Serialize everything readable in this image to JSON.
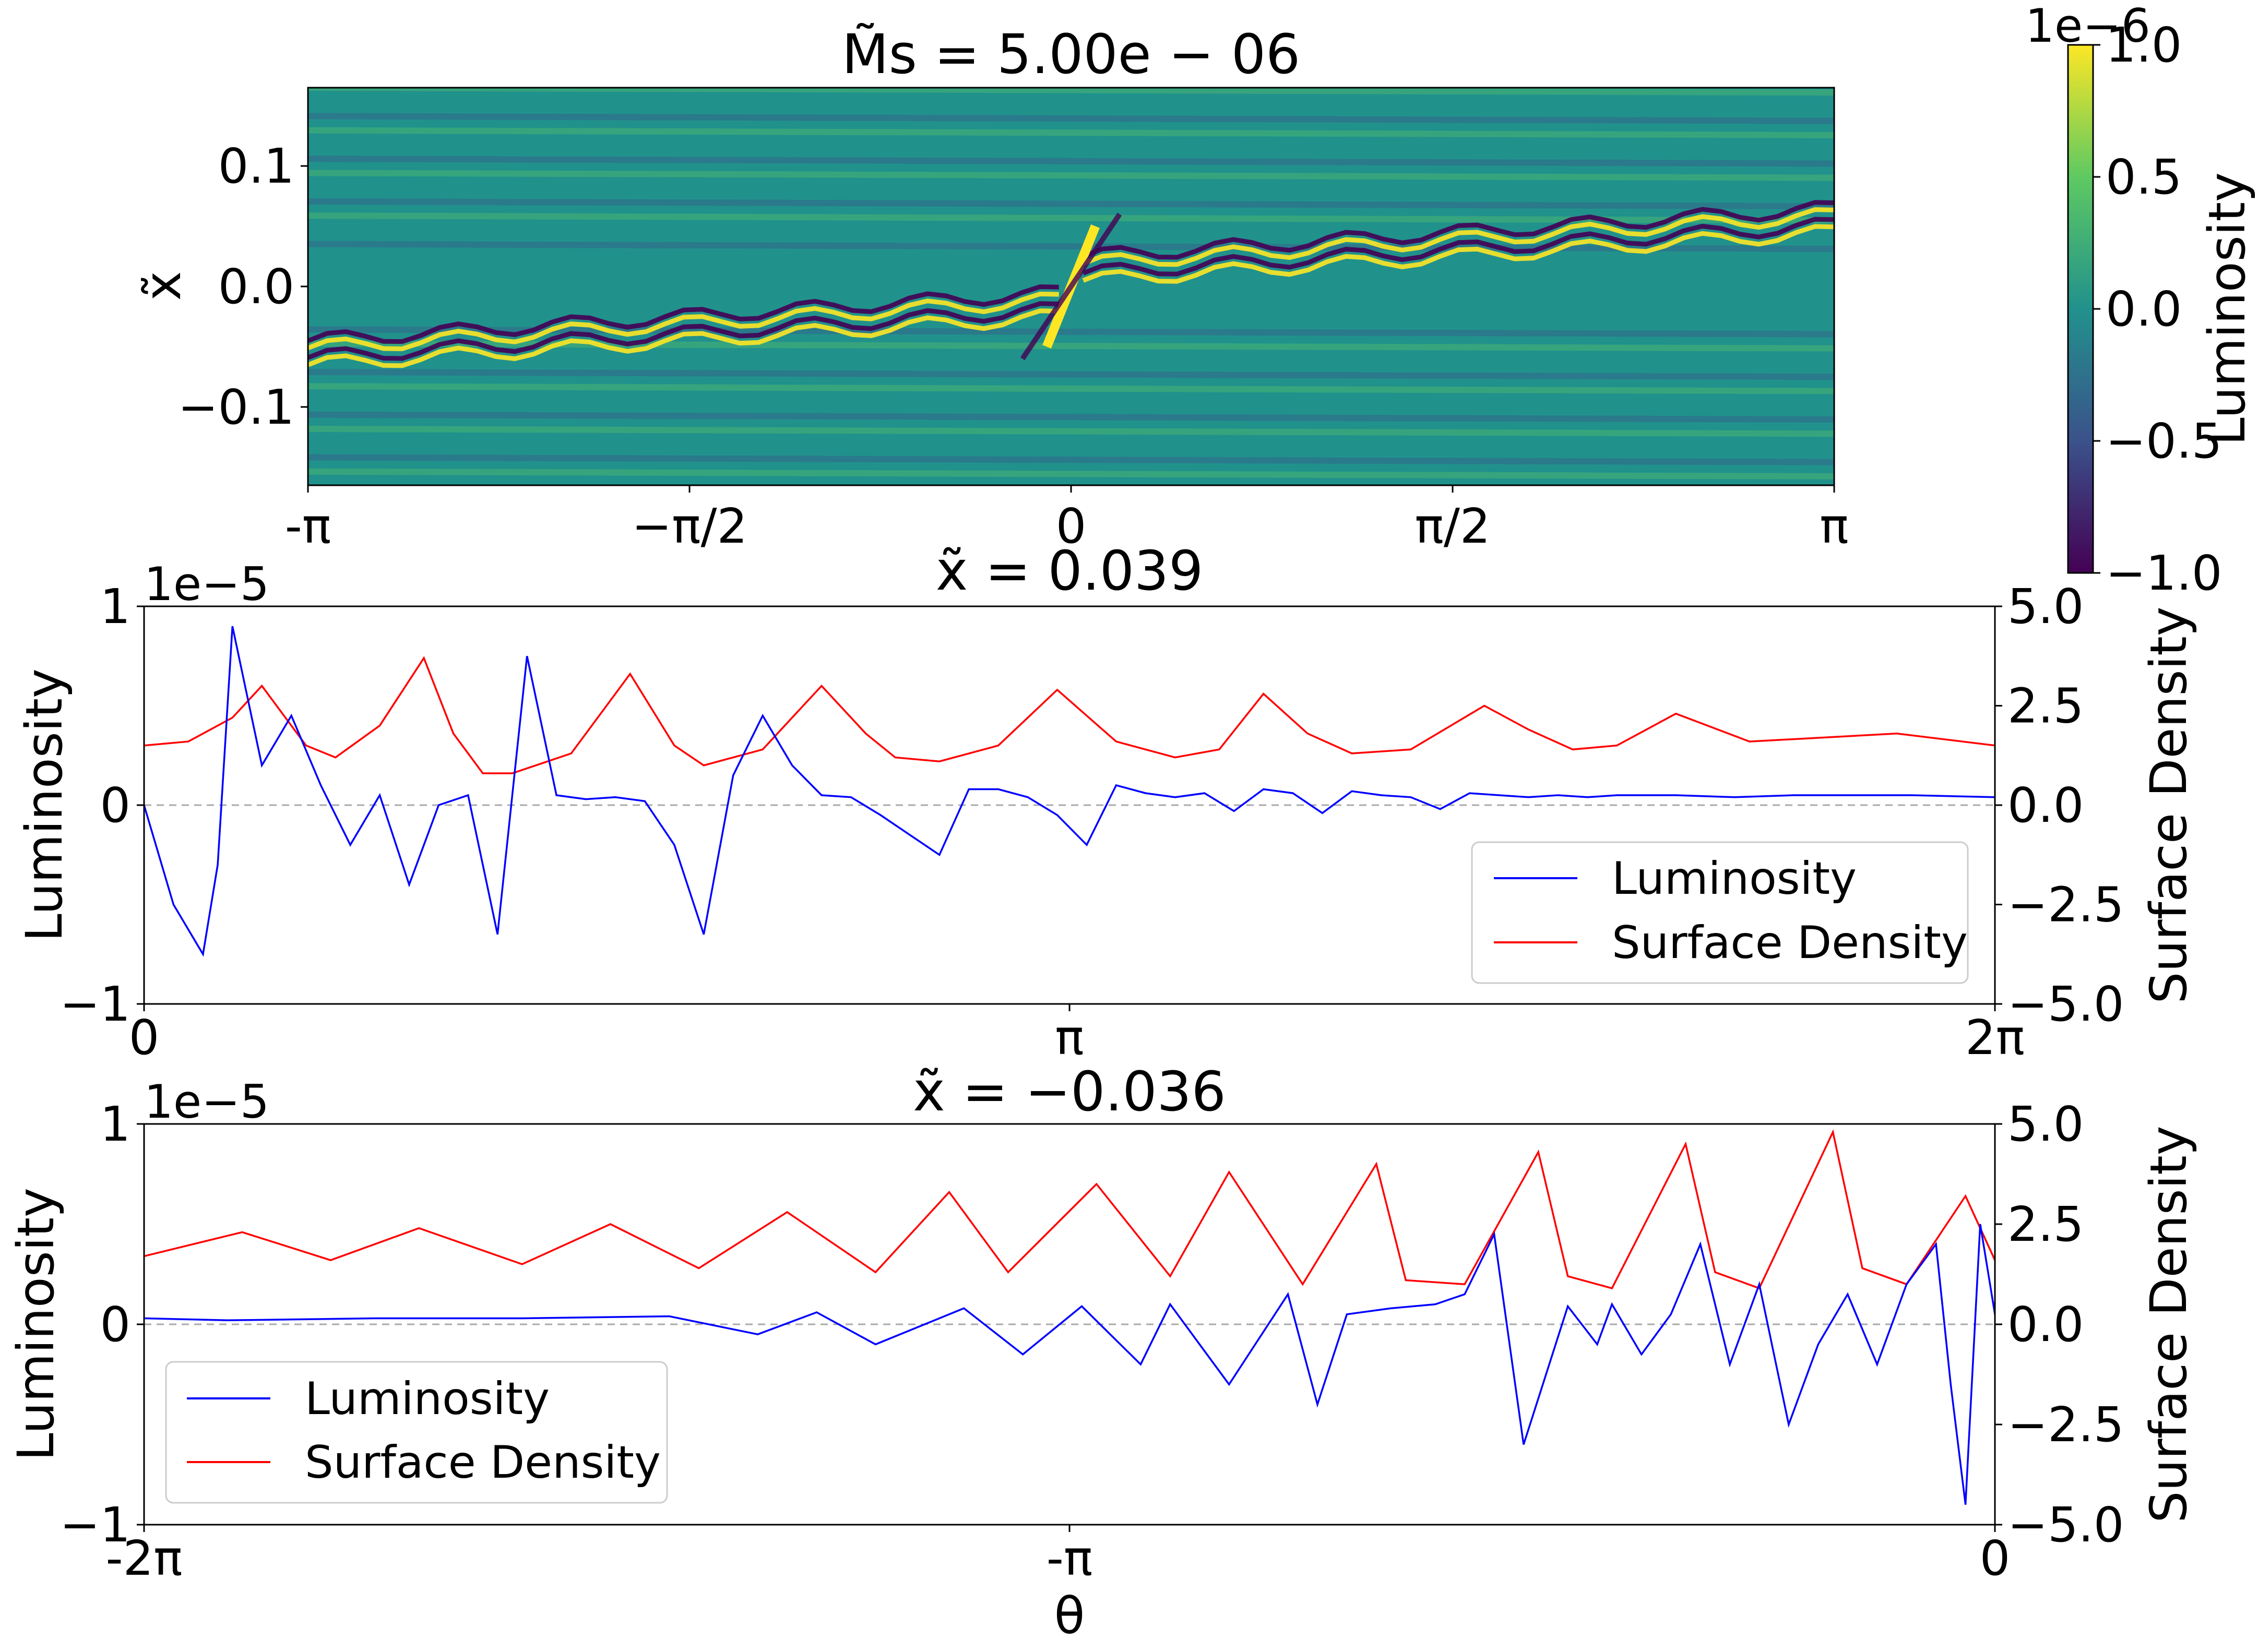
{
  "figure": {
    "top_title": "M̃s = 5.00e − 06",
    "middle_title": "x̃ = 0.039",
    "bottom_title": "x̃ = −0.036",
    "bottom_xlabel": "θ"
  },
  "colorbar": {
    "label": "Luminosity",
    "offset_text": "1e−6",
    "ticks": [
      "1.0",
      "0.5",
      "0.0",
      "−0.5",
      "−1.0"
    ],
    "colors": [
      "#440154",
      "#3b528b",
      "#21918c",
      "#5ec962",
      "#fde725"
    ]
  },
  "chart_data": [
    {
      "type": "heatmap",
      "title": "M̃s = 5.00e − 06",
      "xlabel": "",
      "ylabel": "x̃",
      "xlim": [
        -3.1416,
        3.1416
      ],
      "ylim": [
        -0.165,
        0.165
      ],
      "x_tick_labels": [
        "-π",
        "−π/2",
        "0",
        "π/2",
        "π"
      ],
      "y_tick_labels": [
        "0.1",
        "0.0",
        "−0.1"
      ],
      "y_tick_values": [
        0.1,
        0.0,
        -0.1
      ],
      "colorbar": {
        "label": "Luminosity",
        "range": [
          -1e-06,
          1e-06
        ],
        "cmap": "viridis"
      },
      "features": {
        "spiral_wake_upper": {
          "x_start": 0.05,
          "x_end": 3.14,
          "x_center_start": 0.005,
          "x_center_end": 0.045
        },
        "spiral_wake_lower": {
          "x_start": -3.14,
          "x_end": -0.05,
          "x_center_start": -0.045,
          "x_center_end": -0.005
        }
      }
    },
    {
      "type": "line",
      "title": "x̃ = 0.039",
      "xlabel": "",
      "ylabel": "Luminosity",
      "ylabel_right": "Surface Density",
      "xlim": [
        0,
        6.2832
      ],
      "x_tick_labels": [
        "0",
        "π",
        "2π"
      ],
      "ylim": [
        -1e-05,
        1e-05
      ],
      "y_offset_text": "1e−5",
      "y_tick_labels": [
        "1",
        "0",
        "−1"
      ],
      "y2lim": [
        -5.0,
        5.0
      ],
      "y2_tick_labels": [
        "5.0",
        "2.5",
        "0.0",
        "−2.5",
        "−5.0"
      ],
      "legend": {
        "position": "lower-right",
        "entries": [
          "Luminosity",
          "Surface Density"
        ]
      },
      "series": [
        {
          "name": "Luminosity",
          "color": "#0000ff",
          "axis": "left",
          "x": [
            0.0,
            0.1,
            0.2,
            0.25,
            0.3,
            0.4,
            0.5,
            0.6,
            0.7,
            0.8,
            0.9,
            1.0,
            1.1,
            1.2,
            1.3,
            1.4,
            1.5,
            1.6,
            1.7,
            1.8,
            1.9,
            2.0,
            2.1,
            2.2,
            2.3,
            2.4,
            2.5,
            2.6,
            2.7,
            2.8,
            2.9,
            3.0,
            3.1,
            3.2,
            3.3,
            3.4,
            3.5,
            3.6,
            3.7,
            3.8,
            3.9,
            4.0,
            4.1,
            4.2,
            4.3,
            4.4,
            4.5,
            4.6,
            4.7,
            4.8,
            4.9,
            5.0,
            5.2,
            5.4,
            5.6,
            5.8,
            6.0,
            6.2832
          ],
          "values": [
            0.0,
            -5e-06,
            -7.5e-06,
            -3e-06,
            9e-06,
            2e-06,
            4.5e-06,
            1e-06,
            -2e-06,
            5e-07,
            -4e-06,
            0.0,
            5e-07,
            -6.5e-06,
            7.5e-06,
            5e-07,
            3e-07,
            4e-07,
            2e-07,
            -2e-06,
            -6.5e-06,
            1.5e-06,
            4.5e-06,
            2e-06,
            5e-07,
            4e-07,
            -5e-07,
            -1.5e-06,
            -2.5e-06,
            8e-07,
            8e-07,
            4e-07,
            -5e-07,
            -2e-06,
            1e-06,
            6e-07,
            4e-07,
            6e-07,
            -3e-07,
            8e-07,
            6e-07,
            -4e-07,
            7e-07,
            5e-07,
            4e-07,
            -2e-07,
            6e-07,
            5e-07,
            4e-07,
            5e-07,
            4e-07,
            5e-07,
            5e-07,
            4e-07,
            5e-07,
            5e-07,
            5e-07,
            4e-07
          ]
        },
        {
          "name": "Surface Density",
          "color": "#ff0000",
          "axis": "right",
          "x": [
            0.0,
            0.15,
            0.3,
            0.4,
            0.55,
            0.65,
            0.8,
            0.95,
            1.05,
            1.15,
            1.25,
            1.45,
            1.65,
            1.8,
            1.9,
            2.1,
            2.3,
            2.45,
            2.55,
            2.7,
            2.9,
            3.1,
            3.3,
            3.5,
            3.65,
            3.8,
            3.95,
            4.1,
            4.3,
            4.55,
            4.7,
            4.85,
            5.0,
            5.2,
            5.45,
            5.7,
            5.95,
            6.2832
          ],
          "values": [
            1.5,
            1.6,
            2.2,
            3.0,
            1.5,
            1.2,
            2.0,
            3.7,
            1.8,
            0.8,
            0.8,
            1.3,
            3.3,
            1.5,
            1.0,
            1.4,
            3.0,
            1.8,
            1.2,
            1.1,
            1.5,
            2.9,
            1.6,
            1.2,
            1.4,
            2.8,
            1.8,
            1.3,
            1.4,
            2.5,
            1.9,
            1.4,
            1.5,
            2.3,
            1.6,
            1.7,
            1.8,
            1.5
          ]
        }
      ]
    },
    {
      "type": "line",
      "title": "x̃ = −0.036",
      "xlabel": "θ",
      "ylabel": "Luminosity",
      "ylabel_right": "Surface Density",
      "xlim": [
        -6.2832,
        0
      ],
      "x_tick_labels": [
        "-2π",
        "-π",
        "0"
      ],
      "ylim": [
        -1e-05,
        1e-05
      ],
      "y_offset_text": "1e−5",
      "y_tick_labels": [
        "1",
        "0",
        "−1"
      ],
      "y2lim": [
        -5.0,
        5.0
      ],
      "y2_tick_labels": [
        "5.0",
        "2.5",
        "0.0",
        "−2.5",
        "−5.0"
      ],
      "legend": {
        "position": "lower-left",
        "entries": [
          "Luminosity",
          "Surface Density"
        ]
      },
      "series": [
        {
          "name": "Luminosity",
          "color": "#0000ff",
          "axis": "left",
          "x": [
            -6.2832,
            -6.0,
            -5.5,
            -5.0,
            -4.5,
            -4.2,
            -4.0,
            -3.8,
            -3.5,
            -3.3,
            -3.1,
            -2.9,
            -2.8,
            -2.6,
            -2.4,
            -2.3,
            -2.2,
            -2.05,
            -1.9,
            -1.8,
            -1.7,
            -1.6,
            -1.45,
            -1.35,
            -1.3,
            -1.2,
            -1.1,
            -1.0,
            -0.9,
            -0.8,
            -0.7,
            -0.6,
            -0.5,
            -0.4,
            -0.3,
            -0.2,
            -0.15,
            -0.1,
            -0.05,
            0.0
          ],
          "values": [
            3e-07,
            2e-07,
            3e-07,
            3e-07,
            4e-07,
            -5e-07,
            6e-07,
            -1e-06,
            8e-07,
            -1.5e-06,
            9e-07,
            -2e-06,
            1e-06,
            -3e-06,
            1.5e-06,
            -4e-06,
            5e-07,
            8e-07,
            1e-06,
            1.5e-06,
            4.5e-06,
            -6e-06,
            9e-07,
            -1e-06,
            1e-06,
            -1.5e-06,
            5e-07,
            4e-06,
            -2e-06,
            2e-06,
            -5e-06,
            -1e-06,
            1.5e-06,
            -2e-06,
            2e-06,
            4e-06,
            -3e-06,
            -9e-06,
            5e-06,
            5e-07
          ]
        },
        {
          "name": "Surface Density",
          "color": "#ff0000",
          "axis": "right",
          "x": [
            -6.2832,
            -5.95,
            -5.65,
            -5.35,
            -5.0,
            -4.7,
            -4.4,
            -4.1,
            -3.8,
            -3.55,
            -3.35,
            -3.05,
            -2.8,
            -2.6,
            -2.35,
            -2.1,
            -2.0,
            -1.8,
            -1.55,
            -1.45,
            -1.3,
            -1.05,
            -0.95,
            -0.8,
            -0.55,
            -0.45,
            -0.3,
            -0.1,
            0.0
          ],
          "values": [
            1.7,
            2.3,
            1.6,
            2.4,
            1.5,
            2.5,
            1.4,
            2.8,
            1.3,
            3.3,
            1.3,
            3.5,
            1.2,
            3.8,
            1.0,
            4.0,
            1.1,
            1.0,
            4.3,
            1.2,
            0.9,
            4.5,
            1.3,
            0.9,
            4.8,
            1.4,
            1.0,
            3.2,
            1.6
          ]
        }
      ]
    }
  ]
}
